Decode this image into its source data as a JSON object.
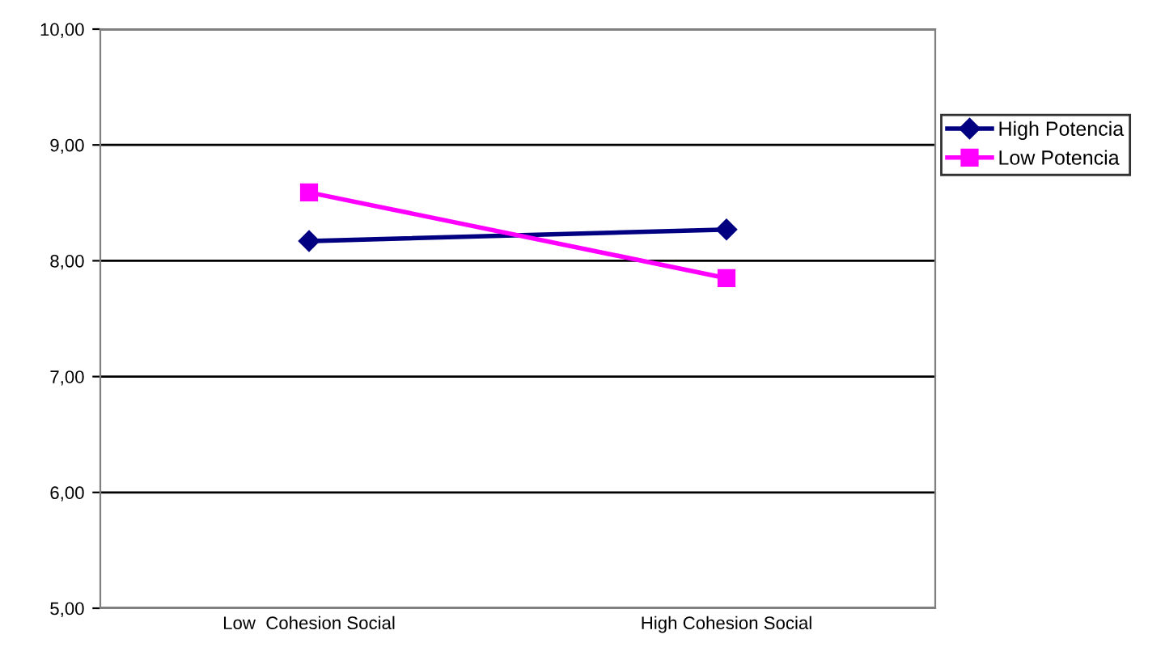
{
  "chart_data": {
    "type": "line",
    "categories": [
      "Low  Cohesion Social",
      "High Cohesion Social"
    ],
    "series": [
      {
        "name": "High Potencia",
        "color": "#000080",
        "marker": "diamond",
        "values": [
          8.17,
          8.27
        ]
      },
      {
        "name": "Low Potencia",
        "color": "#ff00ff",
        "marker": "square",
        "values": [
          8.59,
          7.85
        ]
      }
    ],
    "ylim": [
      5,
      10
    ],
    "yticks": [
      {
        "value": 5,
        "label": "5,00"
      },
      {
        "value": 6,
        "label": "6,00"
      },
      {
        "value": 7,
        "label": "7,00"
      },
      {
        "value": 8,
        "label": "8,00"
      },
      {
        "value": 9,
        "label": "9,00"
      },
      {
        "value": 10,
        "label": "10,00"
      }
    ],
    "grid": "y",
    "legend": "right",
    "line_style": "solid"
  }
}
